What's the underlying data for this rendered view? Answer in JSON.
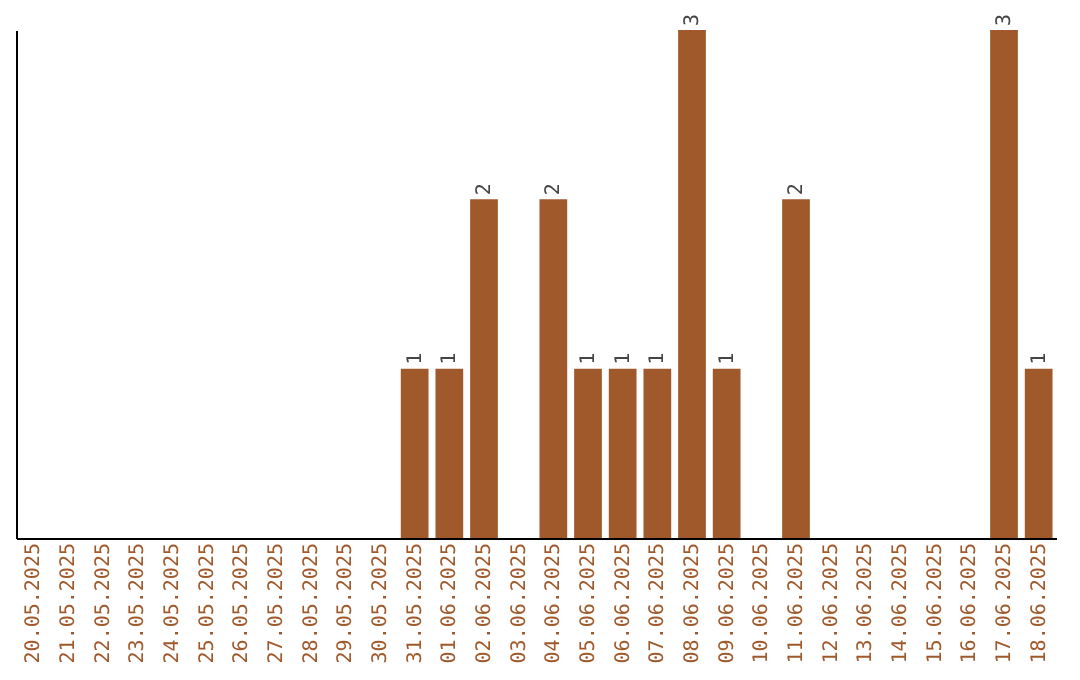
{
  "chart_data": {
    "type": "bar",
    "categories": [
      "20.05.2025",
      "21.05.2025",
      "22.05.2025",
      "23.05.2025",
      "24.05.2025",
      "25.05.2025",
      "26.05.2025",
      "27.05.2025",
      "28.05.2025",
      "29.05.2025",
      "30.05.2025",
      "31.05.2025",
      "01.06.2025",
      "02.06.2025",
      "03.06.2025",
      "04.06.2025",
      "05.06.2025",
      "06.06.2025",
      "07.06.2025",
      "08.06.2025",
      "09.06.2025",
      "10.06.2025",
      "11.06.2025",
      "12.06.2025",
      "13.06.2025",
      "14.06.2025",
      "15.06.2025",
      "16.06.2025",
      "17.06.2025",
      "18.06.2025"
    ],
    "values": [
      0,
      0,
      0,
      0,
      0,
      0,
      0,
      0,
      0,
      0,
      0,
      1,
      1,
      2,
      0,
      2,
      1,
      1,
      1,
      3,
      1,
      0,
      2,
      0,
      0,
      0,
      0,
      0,
      3,
      1
    ],
    "value_labels": [
      null,
      null,
      null,
      null,
      null,
      null,
      null,
      null,
      null,
      null,
      null,
      "1",
      "1",
      "2",
      null,
      "2",
      "1",
      "1",
      "1",
      "3",
      "1",
      null,
      "2",
      null,
      null,
      null,
      null,
      null,
      "3",
      "1"
    ],
    "color": "#a0592b",
    "ylim": [
      0,
      3
    ],
    "tick_labels": "x",
    "grid": false
  }
}
